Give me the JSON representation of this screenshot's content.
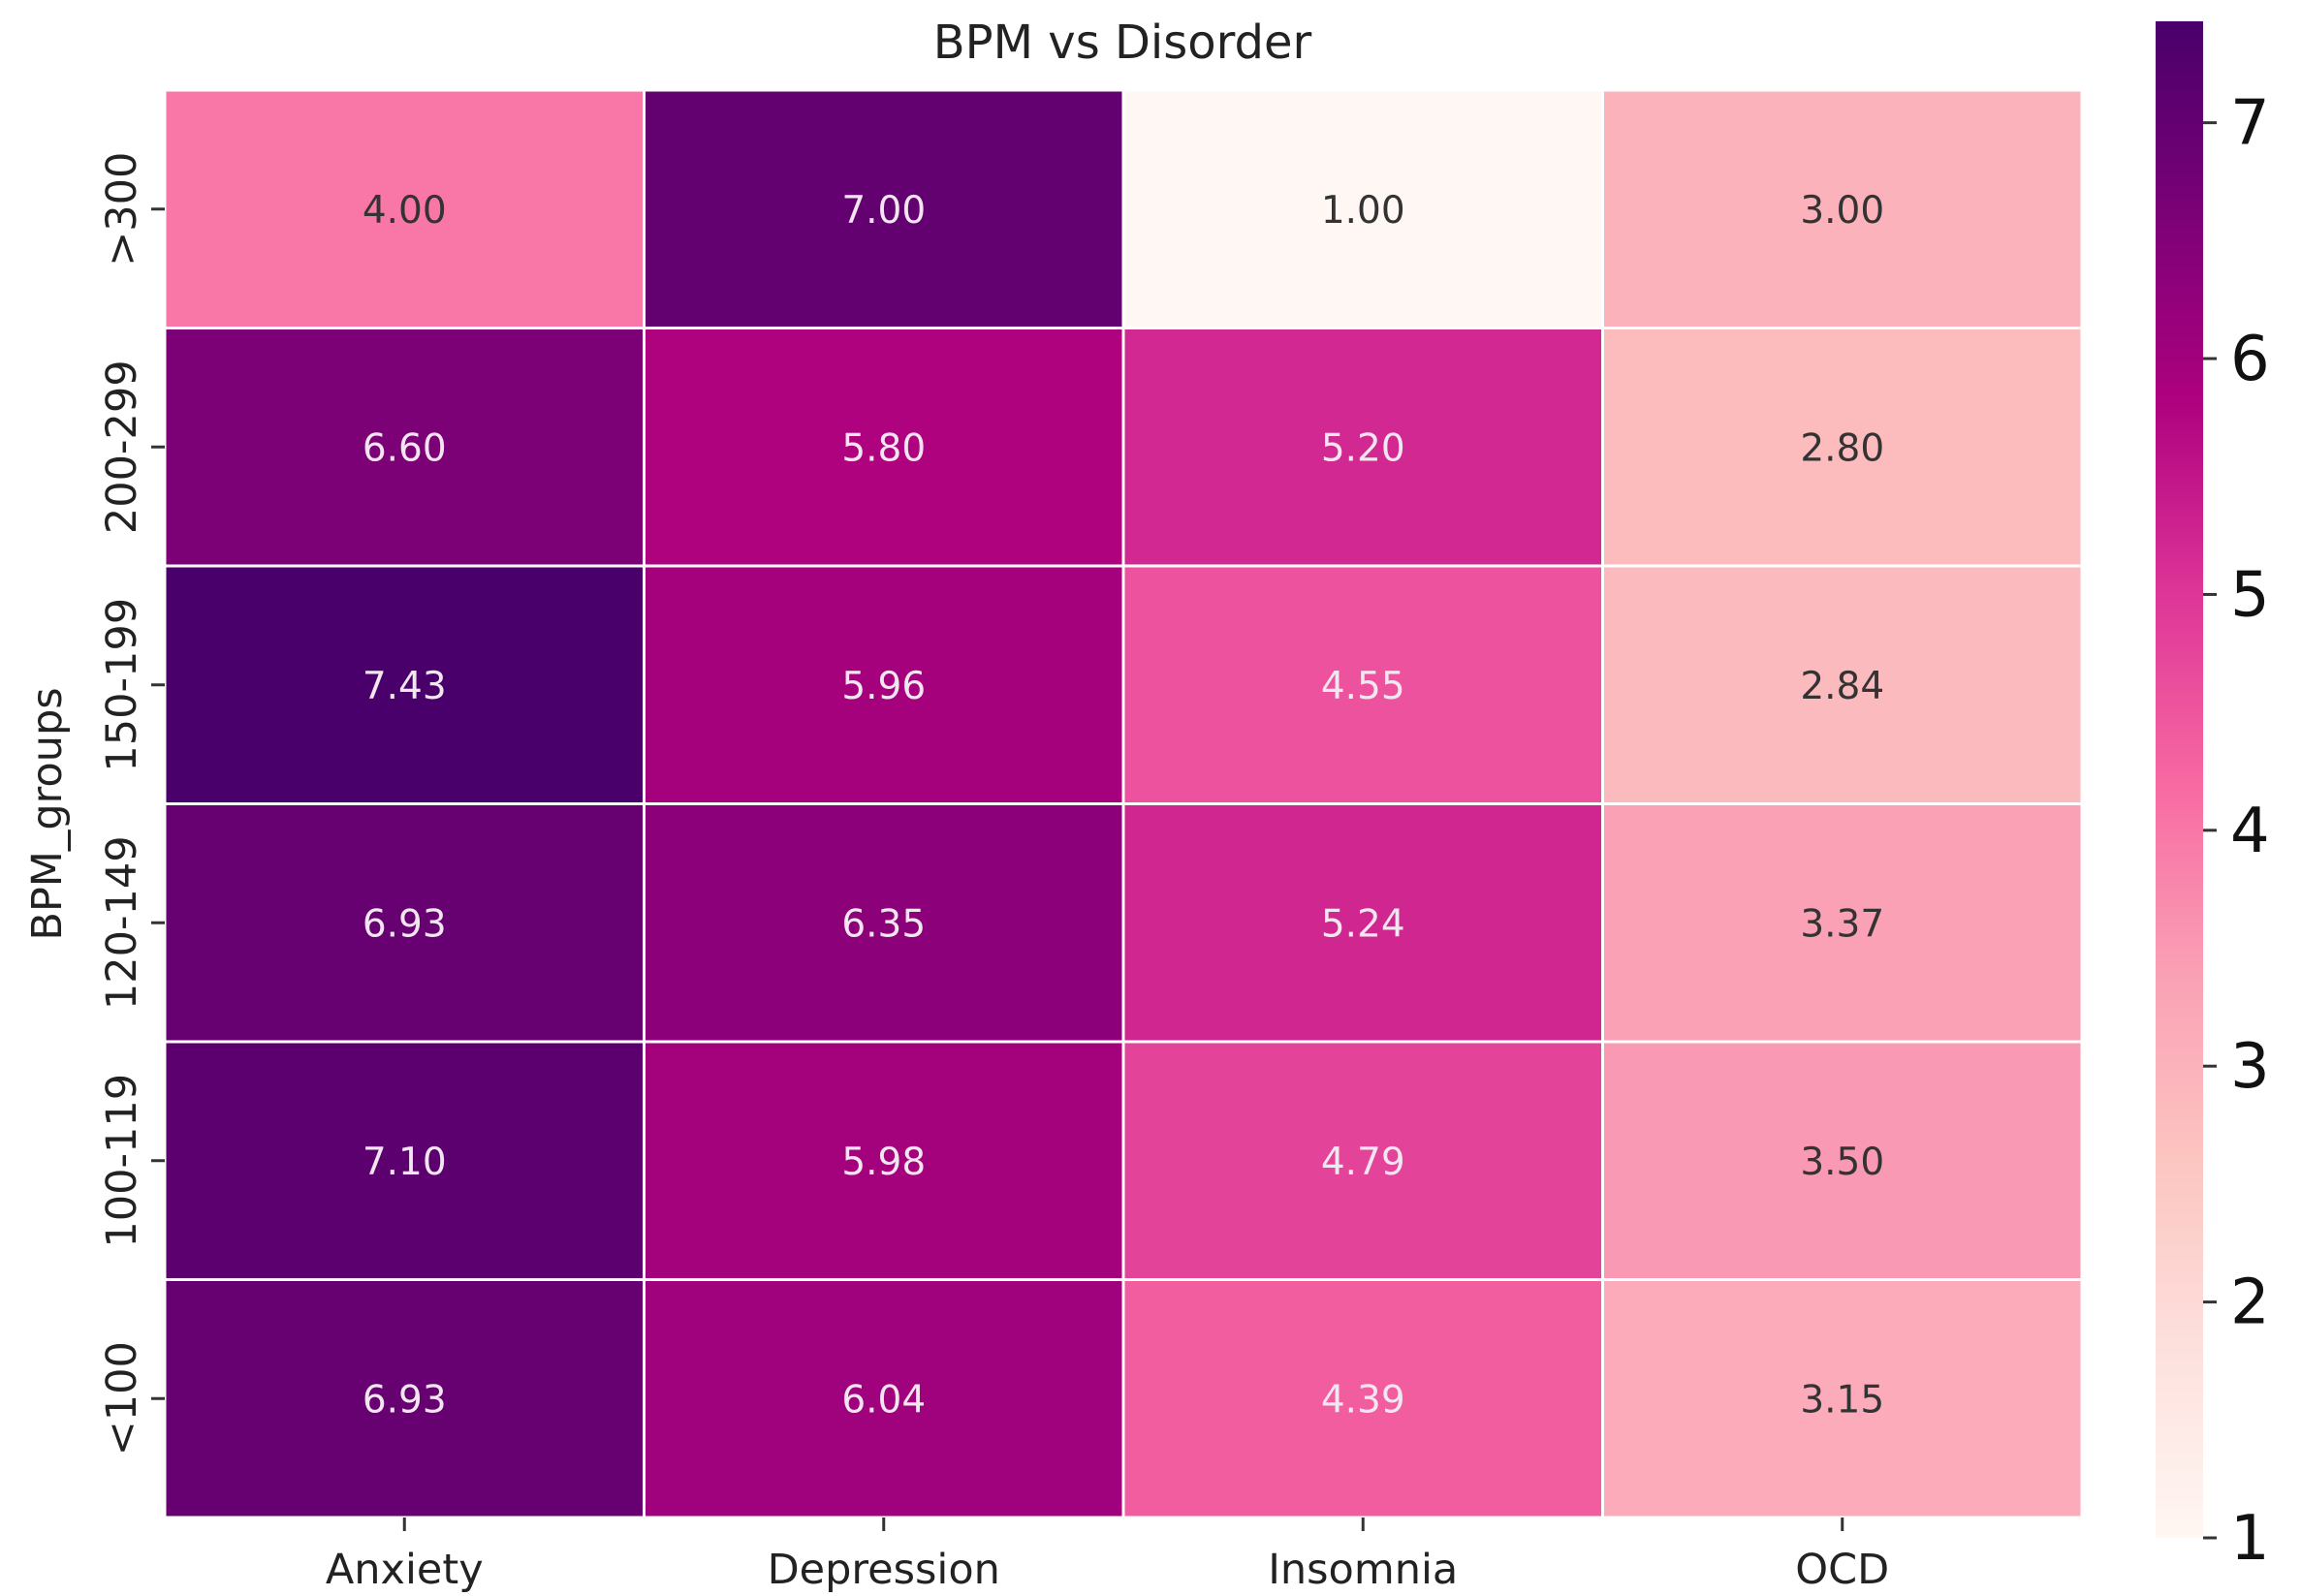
{
  "chart_data": {
    "type": "heatmap",
    "title": "BPM vs Disorder",
    "xlabel": "",
    "ylabel": "BPM_groups",
    "x_categories": [
      "Anxiety",
      "Depression",
      "Insomnia",
      "OCD"
    ],
    "y_categories": [
      ">300",
      "200-299",
      "150-199",
      "120-149",
      "100-119",
      "<100"
    ],
    "values": [
      [
        4.0,
        7.0,
        1.0,
        3.0
      ],
      [
        6.6,
        5.8,
        5.2,
        2.8
      ],
      [
        7.43,
        5.96,
        4.55,
        2.84
      ],
      [
        6.93,
        6.35,
        5.24,
        3.37
      ],
      [
        7.1,
        5.98,
        4.79,
        3.5
      ],
      [
        6.93,
        6.04,
        4.39,
        3.15
      ]
    ],
    "value_format": "2 decimals",
    "colormap": "RdPu",
    "colorbar": {
      "min": 1,
      "max": 7.43,
      "ticks": [
        1,
        2,
        3,
        4,
        5,
        6,
        7
      ],
      "tick_labels": [
        "1",
        "2",
        "3",
        "4",
        "5",
        "6",
        "7"
      ]
    },
    "grid": false,
    "legend": "colorbar right",
    "colors": {
      "cell_border": "#ffffff",
      "text_on_dark": "#f2e6f0",
      "text_on_light": "#333333",
      "colormap_stops": [
        "#fff7f3",
        "#fde0dd",
        "#fcc5c0",
        "#fa9fb5",
        "#f768a1",
        "#dd3497",
        "#ae017e",
        "#7a0177",
        "#49006a"
      ]
    }
  }
}
